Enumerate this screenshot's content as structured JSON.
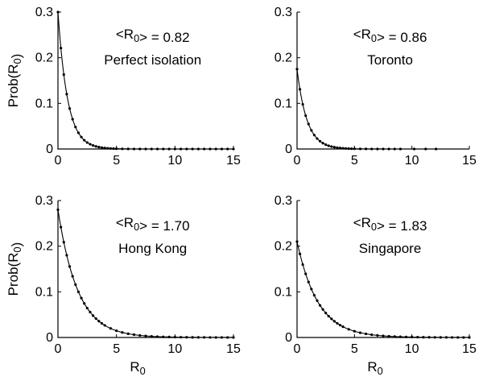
{
  "chart_data": [
    {
      "type": "line",
      "title": "",
      "xlabel": "",
      "ylabel": "Prob(R0)",
      "xlim": [
        0,
        15
      ],
      "ylim": [
        0,
        0.3
      ],
      "xticks": [
        "0",
        "5",
        "10",
        "15"
      ],
      "yticks": [
        "0",
        "0.1",
        "0.2",
        "0.3"
      ],
      "mean_label": "<R0> = 0.82",
      "annotation": "Perfect isolation",
      "mean_r0": 0.82,
      "curve_start": 0.3,
      "points_x": [
        0,
        0.25,
        0.5,
        0.75,
        1,
        1.25,
        1.5,
        1.75,
        2,
        2.25,
        2.5,
        2.75,
        3,
        3.25,
        3.5,
        3.75,
        4,
        4.25,
        4.5,
        4.75,
        5,
        5.5,
        6,
        6.5,
        7,
        7.5,
        8,
        8.5,
        9,
        9.5,
        10,
        10.5,
        11,
        11.5,
        12,
        12.5,
        13,
        13.5,
        14,
        14.5,
        15
      ]
    },
    {
      "type": "line",
      "title": "",
      "xlabel": "",
      "ylabel": "",
      "xlim": [
        0,
        15
      ],
      "ylim": [
        0,
        0.3
      ],
      "xticks": [
        "0",
        "5",
        "10",
        "15"
      ],
      "yticks": [
        "0",
        "0.1",
        "0.2",
        "0.3"
      ],
      "mean_label": "<R0> = 0.86",
      "annotation": "Toronto",
      "mean_r0": 0.86,
      "curve_start": 0.175,
      "points_x": [
        0,
        0.25,
        0.5,
        0.75,
        1,
        1.25,
        1.5,
        1.75,
        2,
        2.25,
        2.5,
        2.75,
        3,
        3.25,
        3.5,
        3.75,
        4,
        4.25,
        4.5,
        4.75,
        5,
        5.5,
        6,
        6.5,
        7,
        7.5,
        8,
        8.5,
        9,
        10.2,
        11.2,
        12.1
      ]
    },
    {
      "type": "line",
      "title": "",
      "xlabel": "R0",
      "ylabel": "Prob(R0)",
      "xlim": [
        0,
        15
      ],
      "ylim": [
        0,
        0.3
      ],
      "xticks": [
        "0",
        "5",
        "10",
        "15"
      ],
      "yticks": [
        "0",
        "0.1",
        "0.2",
        "0.3"
      ],
      "mean_label": "<R0> = 1.70",
      "annotation": "Hong Kong",
      "mean_r0": 1.7,
      "curve_start": 0.28,
      "points_x": [
        0,
        0.25,
        0.5,
        0.75,
        1,
        1.25,
        1.5,
        1.75,
        2,
        2.25,
        2.5,
        2.75,
        3,
        3.25,
        3.5,
        3.75,
        4,
        4.5,
        5,
        5.5,
        6,
        6.5,
        7,
        7.5,
        8,
        8.5,
        9,
        9.5,
        10,
        10.5,
        11,
        11.5,
        12,
        12.5,
        13,
        13.5,
        14,
        14.5,
        15
      ]
    },
    {
      "type": "line",
      "title": "",
      "xlabel": "R0",
      "ylabel": "",
      "xlim": [
        0,
        15
      ],
      "ylim": [
        0,
        0.3
      ],
      "xticks": [
        "0",
        "5",
        "10",
        "15"
      ],
      "yticks": [
        "0",
        "0.1",
        "0.2",
        "0.3"
      ],
      "mean_label": "<R0> = 1.83",
      "annotation": "Singapore",
      "mean_r0": 1.83,
      "curve_start": 0.21,
      "points_x": [
        0,
        0.25,
        0.5,
        0.75,
        1,
        1.25,
        1.5,
        1.75,
        2,
        2.25,
        2.5,
        2.75,
        3,
        3.25,
        3.5,
        3.75,
        4,
        4.5,
        5,
        5.5,
        6,
        6.5,
        7,
        7.5,
        8,
        8.5,
        9,
        9.5,
        10,
        10.5,
        11,
        11.5,
        12,
        12.5,
        13,
        13.5,
        14,
        14.5,
        15
      ]
    }
  ]
}
